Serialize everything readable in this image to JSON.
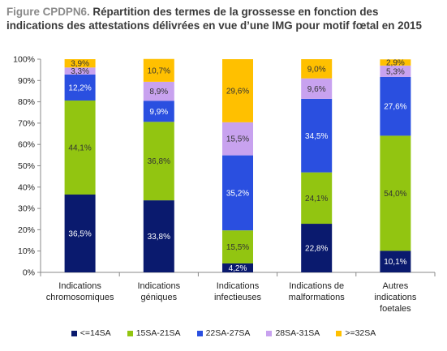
{
  "chart_data": {
    "type": "bar",
    "stacked": true,
    "title_label": "Figure CPDPN6.",
    "title_line1": " Répartition des termes de la grossesse en fonction des",
    "title_line2": "indications des attestations délivrées en vue d’une IMG pour motif fœtal en 2015",
    "categories": [
      "Indications chromosomiques",
      "Indications géniques",
      "Indications infectieuses",
      "Indications de malformations",
      "Autres indications foetales"
    ],
    "category_lines": [
      [
        "Indications",
        "chromosomiques"
      ],
      [
        "Indications",
        "géniques"
      ],
      [
        "Indications",
        "infectieuses"
      ],
      [
        "Indications de",
        "malformations"
      ],
      [
        "Autres",
        "indications",
        "foetales"
      ]
    ],
    "series": [
      {
        "name": "<=14SA",
        "color": "#0a1a6e",
        "values": [
          36.5,
          33.8,
          4.2,
          22.8,
          10.1
        ],
        "labels": [
          "36,5%",
          "33,8%",
          "4,2%",
          "22,8%",
          "10,1%"
        ],
        "label_color": "#ffffff"
      },
      {
        "name": "15SA-21SA",
        "color": "#92c511",
        "values": [
          44.1,
          36.8,
          15.5,
          24.1,
          54.0
        ],
        "labels": [
          "44,1%",
          "36,8%",
          "15,5%",
          "24,1%",
          "54,0%"
        ],
        "label_color": "#333333"
      },
      {
        "name": "22SA-27SA",
        "color": "#2a4fe0",
        "values": [
          12.2,
          9.9,
          35.2,
          34.5,
          27.6
        ],
        "labels": [
          "12,2%",
          "9,9%",
          "35,2%",
          "34,5%",
          "27,6%"
        ],
        "label_color": "#ffffff"
      },
      {
        "name": "28SA-31SA",
        "color": "#c8a2ef",
        "values": [
          3.3,
          8.9,
          15.5,
          9.6,
          5.3
        ],
        "labels": [
          "3,3%",
          "8,9%",
          "15,5%",
          "9,6%",
          "5,3%"
        ],
        "label_color": "#333333"
      },
      {
        "name": ">=32SA",
        "color": "#ffc000",
        "values": [
          3.9,
          10.7,
          29.6,
          9.0,
          2.9
        ],
        "labels": [
          "3,9%",
          "10,7%",
          "29,6%",
          "9,0%",
          "2,9%"
        ],
        "label_color": "#333333"
      }
    ],
    "y_ticks": [
      "0%",
      "10%",
      "20%",
      "30%",
      "40%",
      "50%",
      "60%",
      "70%",
      "80%",
      "90%",
      "100%"
    ],
    "ylim": [
      0,
      100
    ],
    "grid": false,
    "legend_position": "bottom"
  }
}
